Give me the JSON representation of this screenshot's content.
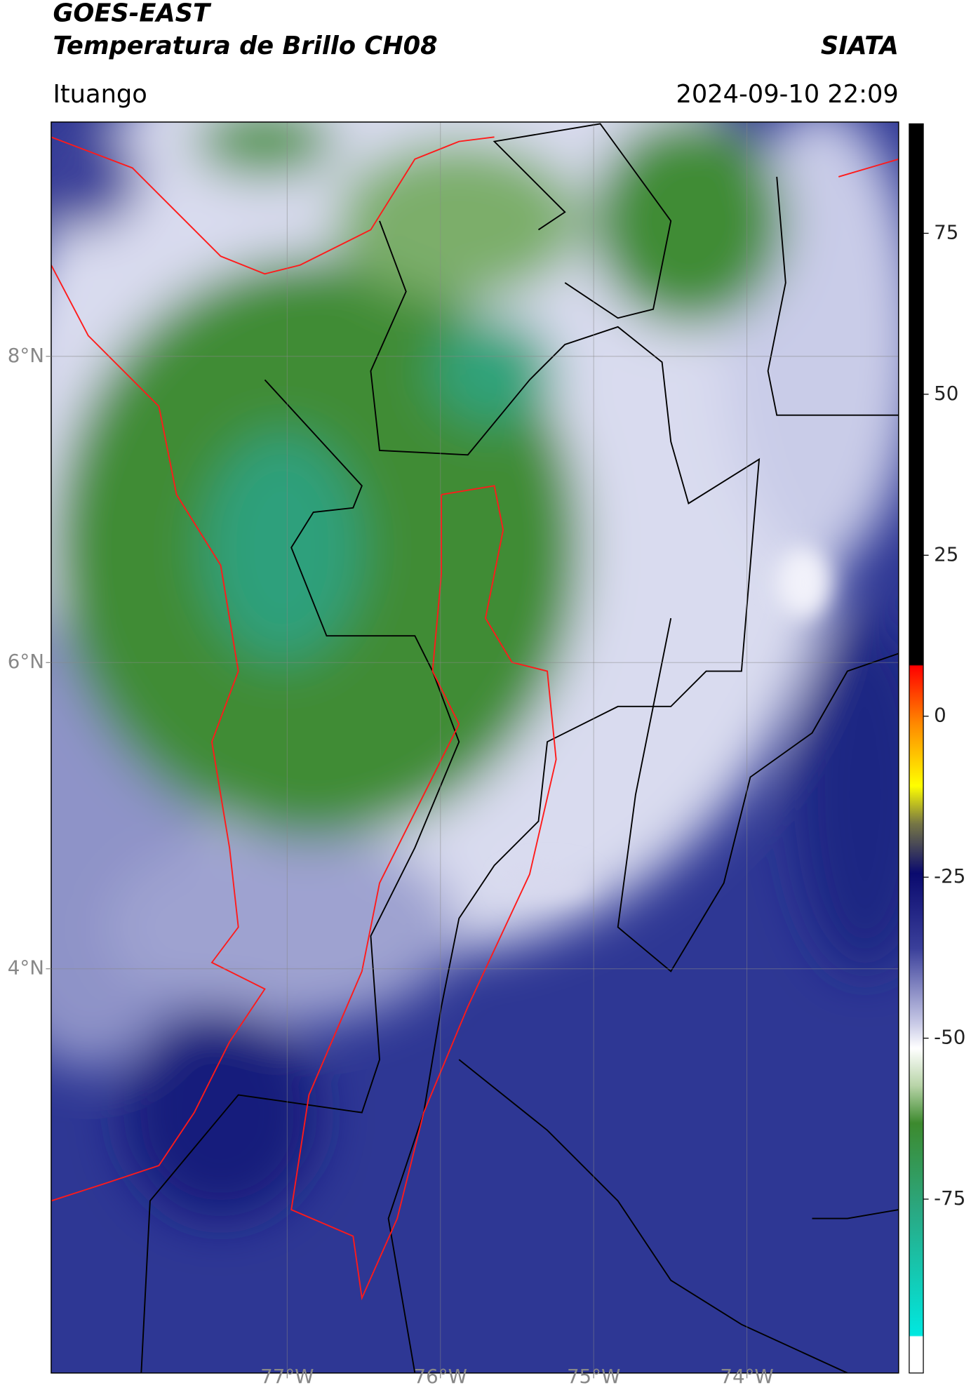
{
  "chart_data": {
    "type": "map",
    "title": "GOES-EAST",
    "subtitle": "Temperatura de Brillo CH08",
    "credit": "SIATA",
    "location": "Ituango",
    "datetime": "2024-09-10 22:09",
    "xlim": [
      -78.54,
      -73.01
    ],
    "ylim": [
      1.36,
      9.53
    ],
    "xticks": [
      {
        "value": -77,
        "label": "77°W"
      },
      {
        "value": -76,
        "label": "76°W"
      },
      {
        "value": -75,
        "label": "75°W"
      },
      {
        "value": -74,
        "label": "74°W"
      }
    ],
    "yticks": [
      {
        "value": 4,
        "label": "4°N"
      },
      {
        "value": 6,
        "label": "6°N"
      },
      {
        "value": 8,
        "label": "8°N"
      }
    ],
    "grid": true,
    "colorbar": {
      "lim": [
        -102,
        92
      ],
      "ticks": [
        -75,
        -50,
        -25,
        0,
        25,
        50,
        75
      ]
    }
  }
}
